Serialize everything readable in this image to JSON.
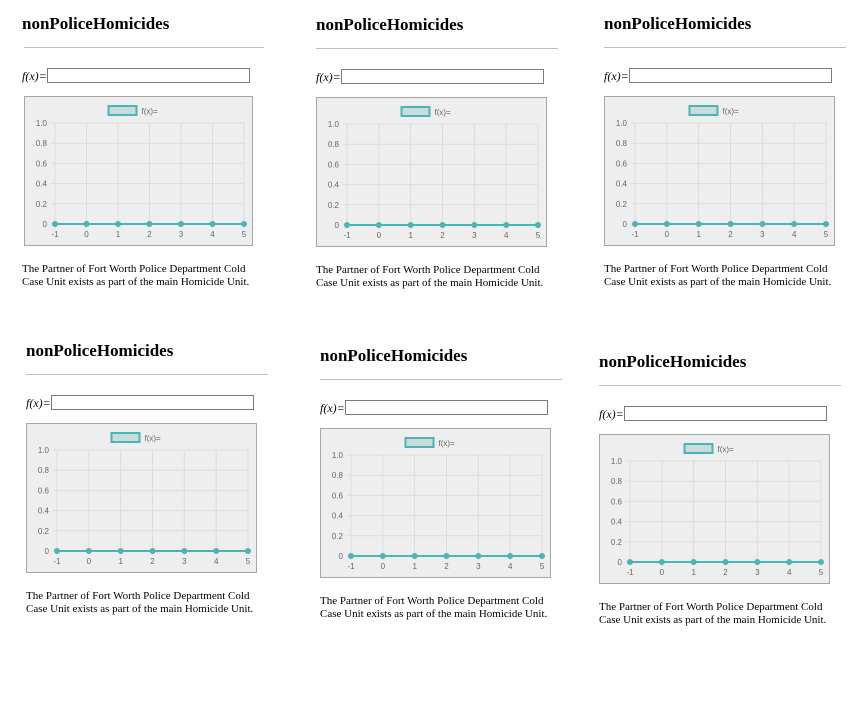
{
  "panels": [
    {
      "title": "nonPoliceHomicides",
      "fx_label": "f(x)=",
      "input_value": "",
      "description": [
        "The Partner of Fort Worth Police Department Cold",
        "Case Unit exists as part of the main Homicide Unit."
      ]
    },
    {
      "title": "nonPoliceHomicides",
      "fx_label": "f(x)=",
      "input_value": "",
      "description": [
        "The Partner of Fort Worth Police Department Cold",
        "Case Unit exists as part of the main Homicide Unit."
      ]
    },
    {
      "title": "nonPoliceHomicides",
      "fx_label": "f(x)=",
      "input_value": "",
      "description": [
        "The Partner of Fort Worth Police Department Cold",
        "Case Unit exists as part of the main Homicide Unit."
      ]
    },
    {
      "title": "nonPoliceHomicides",
      "fx_label": "f(x)=",
      "input_value": "",
      "description": [
        "The Partner of Fort Worth Police Department Cold",
        "Case Unit exists as part of the main Homicide Unit."
      ]
    },
    {
      "title": "nonPoliceHomicides",
      "fx_label": "f(x)=",
      "input_value": "",
      "description": [
        "The Partner of Fort Worth Police Department Cold",
        "Case Unit exists as part of the main Homicide Unit."
      ]
    },
    {
      "title": "nonPoliceHomicides",
      "fx_label": "f(x)=",
      "input_value": "",
      "description": [
        "The Partner of Fort Worth Police Department Cold",
        "Case Unit exists as part of the main Homicide Unit."
      ]
    }
  ],
  "colors": {
    "series": "#4bb4b4",
    "series_fill": "#c8dcdc",
    "grid": "#dcdcdc",
    "chart_bg": "#eeeeee"
  },
  "chart_data": [
    {
      "type": "line",
      "x": [
        -1,
        0,
        1,
        2,
        3,
        4,
        5
      ],
      "series": [
        {
          "name": "f(x)=",
          "values": [
            0,
            0,
            0,
            0,
            0,
            0,
            0
          ]
        }
      ],
      "x_ticks": [
        "-1",
        "0",
        "1",
        "2",
        "3",
        "4",
        "5"
      ],
      "y_ticks": [
        "0",
        "0.2",
        "0.4",
        "0.6",
        "0.8",
        "1.0"
      ],
      "ylim": [
        0,
        1
      ],
      "grid": true,
      "legend": "top-center"
    },
    {
      "type": "line",
      "x": [
        -1,
        0,
        1,
        2,
        3,
        4,
        5
      ],
      "series": [
        {
          "name": "f(x)=",
          "values": [
            0,
            0,
            0,
            0,
            0,
            0,
            0
          ]
        }
      ],
      "x_ticks": [
        "-1",
        "0",
        "1",
        "2",
        "3",
        "4",
        "5"
      ],
      "y_ticks": [
        "0",
        "0.2",
        "0.4",
        "0.6",
        "0.8",
        "1.0"
      ],
      "ylim": [
        0,
        1
      ],
      "grid": true,
      "legend": "top-center"
    },
    {
      "type": "line",
      "x": [
        -1,
        0,
        1,
        2,
        3,
        4,
        5
      ],
      "series": [
        {
          "name": "f(x)=",
          "values": [
            0,
            0,
            0,
            0,
            0,
            0,
            0
          ]
        }
      ],
      "x_ticks": [
        "-1",
        "0",
        "1",
        "2",
        "3",
        "4",
        "5"
      ],
      "y_ticks": [
        "0",
        "0.2",
        "0.4",
        "0.6",
        "0.8",
        "1.0"
      ],
      "ylim": [
        0,
        1
      ],
      "grid": true,
      "legend": "top-center"
    },
    {
      "type": "line",
      "x": [
        -1,
        0,
        1,
        2,
        3,
        4,
        5
      ],
      "series": [
        {
          "name": "f(x)=",
          "values": [
            0,
            0,
            0,
            0,
            0,
            0,
            0
          ]
        }
      ],
      "x_ticks": [
        "-1",
        "0",
        "1",
        "2",
        "3",
        "4",
        "5"
      ],
      "y_ticks": [
        "0",
        "0.2",
        "0.4",
        "0.6",
        "0.8",
        "1.0"
      ],
      "ylim": [
        0,
        1
      ],
      "grid": true,
      "legend": "top-center"
    },
    {
      "type": "line",
      "x": [
        -1,
        0,
        1,
        2,
        3,
        4,
        5
      ],
      "series": [
        {
          "name": "f(x)=",
          "values": [
            0,
            0,
            0,
            0,
            0,
            0,
            0
          ]
        }
      ],
      "x_ticks": [
        "-1",
        "0",
        "1",
        "2",
        "3",
        "4",
        "5"
      ],
      "y_ticks": [
        "0",
        "0.2",
        "0.4",
        "0.6",
        "0.8",
        "1.0"
      ],
      "ylim": [
        0,
        1
      ],
      "grid": true,
      "legend": "top-center"
    },
    {
      "type": "line",
      "x": [
        -1,
        0,
        1,
        2,
        3,
        4,
        5
      ],
      "series": [
        {
          "name": "f(x)=",
          "values": [
            0,
            0,
            0,
            0,
            0,
            0,
            0
          ]
        }
      ],
      "x_ticks": [
        "-1",
        "0",
        "1",
        "2",
        "3",
        "4",
        "5"
      ],
      "y_ticks": [
        "0",
        "0.2",
        "0.4",
        "0.6",
        "0.8",
        "1.0"
      ],
      "ylim": [
        0,
        1
      ],
      "grid": true,
      "legend": "top-center"
    }
  ]
}
